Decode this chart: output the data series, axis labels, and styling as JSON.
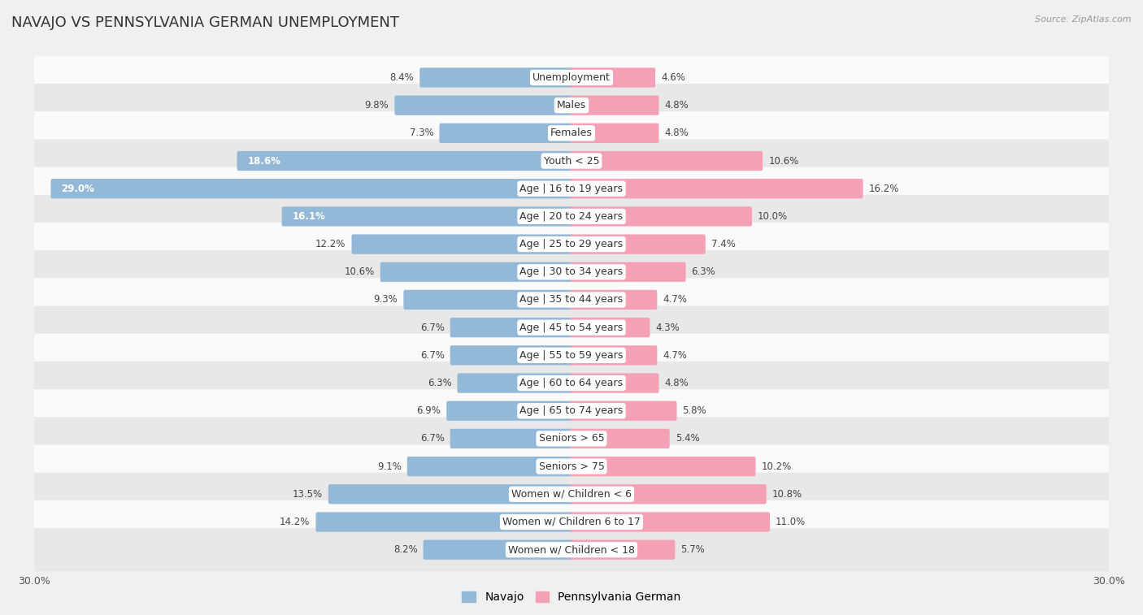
{
  "title": "NAVAJO VS PENNSYLVANIA GERMAN UNEMPLOYMENT",
  "source": "Source: ZipAtlas.com",
  "categories": [
    "Unemployment",
    "Males",
    "Females",
    "Youth < 25",
    "Age | 16 to 19 years",
    "Age | 20 to 24 years",
    "Age | 25 to 29 years",
    "Age | 30 to 34 years",
    "Age | 35 to 44 years",
    "Age | 45 to 54 years",
    "Age | 55 to 59 years",
    "Age | 60 to 64 years",
    "Age | 65 to 74 years",
    "Seniors > 65",
    "Seniors > 75",
    "Women w/ Children < 6",
    "Women w/ Children 6 to 17",
    "Women w/ Children < 18"
  ],
  "navajo_values": [
    8.4,
    9.8,
    7.3,
    18.6,
    29.0,
    16.1,
    12.2,
    10.6,
    9.3,
    6.7,
    6.7,
    6.3,
    6.9,
    6.7,
    9.1,
    13.5,
    14.2,
    8.2
  ],
  "pa_german_values": [
    4.6,
    4.8,
    4.8,
    10.6,
    16.2,
    10.0,
    7.4,
    6.3,
    4.7,
    4.3,
    4.7,
    4.8,
    5.8,
    5.4,
    10.2,
    10.8,
    11.0,
    5.7
  ],
  "navajo_color": "#94b8d8",
  "pa_german_color": "#f4a0b5",
  "navajo_label": "Navajo",
  "pa_german_label": "Pennsylvania German",
  "axis_limit": 30.0,
  "bg_color": "#f0f0f0",
  "row_light_color": "#fafafa",
  "row_dark_color": "#e8e8e8",
  "title_fontsize": 13,
  "label_fontsize": 9,
  "value_fontsize": 8.5,
  "legend_fontsize": 10
}
